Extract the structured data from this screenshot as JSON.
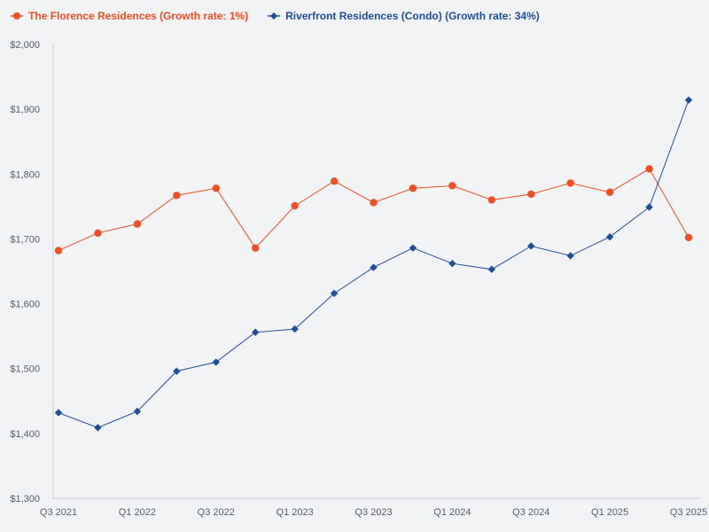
{
  "chart_data": {
    "type": "line",
    "title": "",
    "xlabel": "",
    "ylabel": "",
    "ylim": [
      1300,
      2000
    ],
    "y_ticks": [
      1300,
      1400,
      1500,
      1600,
      1700,
      1800,
      1900,
      2000
    ],
    "y_tick_labels": [
      "$1,300",
      "$1,400",
      "$1,500",
      "$1,600",
      "$1,700",
      "$1,800",
      "$1,900",
      "$2,000"
    ],
    "categories": [
      "Q3 2021",
      "Q4 2021",
      "Q1 2022",
      "Q2 2022",
      "Q3 2022",
      "Q4 2022",
      "Q1 2023",
      "Q2 2023",
      "Q3 2023",
      "Q4 2023",
      "Q1 2024",
      "Q2 2024",
      "Q3 2024",
      "Q4 2024",
      "Q1 2025",
      "Q2 2025",
      "Q3 2025"
    ],
    "x_tick_labels": [
      "Q3 2021",
      "",
      "Q1 2022",
      "",
      "Q3 2022",
      "",
      "Q1 2023",
      "",
      "Q3 2023",
      "",
      "Q1 2024",
      "",
      "Q3 2024",
      "",
      "Q1 2025",
      "",
      "Q3 2025"
    ],
    "legend_position": "top-left",
    "series": [
      {
        "name": "The Florence Residences (Growth rate: 1%)",
        "color": "#f04e23",
        "marker": "circle",
        "values": [
          1682,
          1709,
          1723,
          1767,
          1778,
          1686,
          1751,
          1789,
          1756,
          1778,
          1782,
          1760,
          1769,
          1786,
          1772,
          1808,
          1702
        ]
      },
      {
        "name": "Riverfront Residences (Condo) (Growth rate: 34%)",
        "color": "#1f4e9a",
        "marker": "diamond",
        "values": [
          1432,
          1409,
          1434,
          1496,
          1510,
          1556,
          1561,
          1616,
          1656,
          1686,
          1662,
          1653,
          1689,
          1674,
          1703,
          1749,
          1914
        ]
      }
    ]
  },
  "colors": {
    "background": "#f2f3f5",
    "axis": "#c9ced6",
    "tick_text": "#555e6b"
  }
}
